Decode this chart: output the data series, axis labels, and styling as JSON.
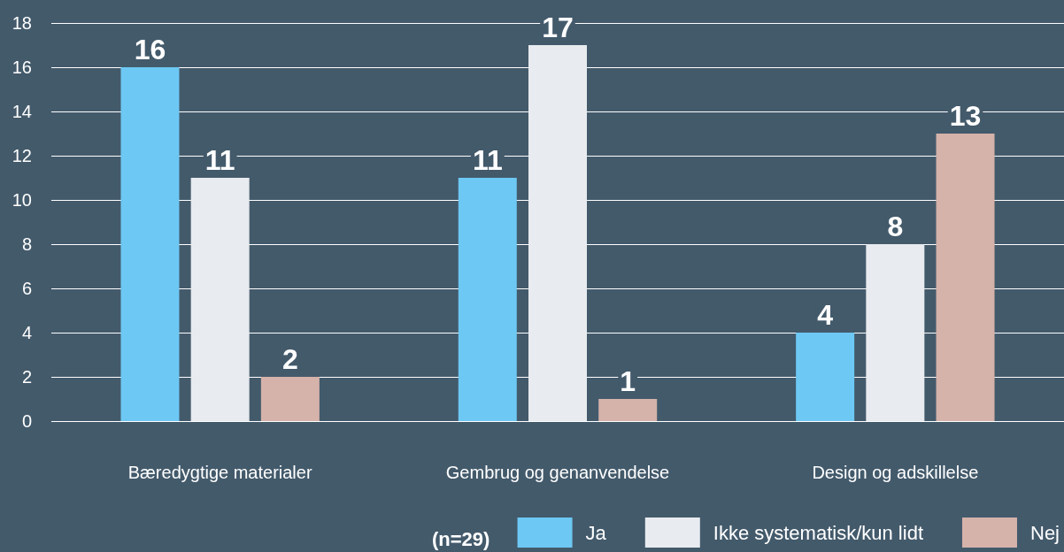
{
  "chart_data": {
    "type": "bar",
    "categories": [
      "Bæredygtige materialer",
      "Gembrug og genanvendelse",
      "Design og adskillelse"
    ],
    "series": [
      {
        "name": "Ja",
        "color": "#6dc8f3",
        "values": [
          16,
          11,
          4
        ]
      },
      {
        "name": "Ikke systematisk/kun lidt",
        "color": "#e8ebef",
        "values": [
          11,
          17,
          8
        ]
      },
      {
        "name": "Nej",
        "color": "#d5b2aa",
        "values": [
          2,
          1,
          13
        ]
      }
    ],
    "ylim": [
      0,
      18
    ],
    "yticks": [
      0,
      2,
      4,
      6,
      8,
      10,
      12,
      14,
      16,
      18
    ],
    "grid": "y",
    "legend": "bottom right",
    "data_labels": true,
    "annotations": [
      "(n=29)"
    ]
  }
}
